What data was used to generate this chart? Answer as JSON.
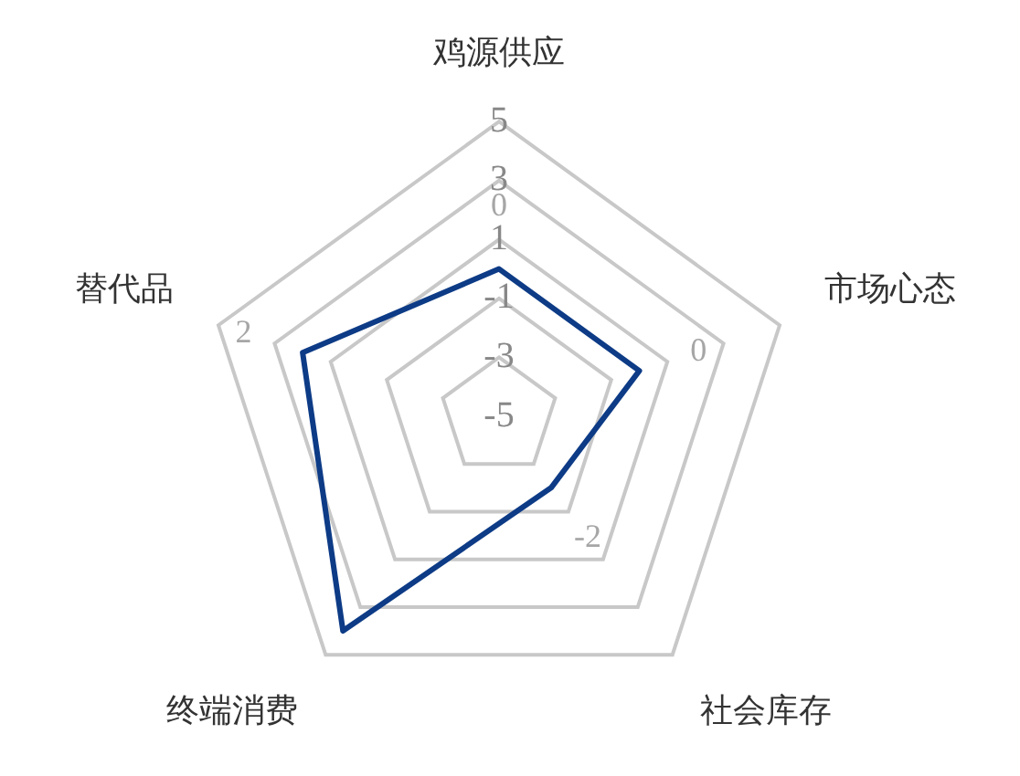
{
  "chart_data": {
    "type": "radar",
    "categories": [
      "鸡源供应",
      "市场心态",
      "社会库存",
      "终端消费",
      "替代品"
    ],
    "series": [
      {
        "color": "#0d3b86",
        "values": [
          0,
          0,
          -2,
          4,
          2
        ],
        "value_labels": [
          "0",
          "0",
          "-2",
          null,
          "2"
        ]
      }
    ],
    "ylim": [
      -5,
      5
    ],
    "yticks": [
      -5,
      -3,
      -1,
      1,
      3,
      5
    ],
    "grid": true,
    "legend": false,
    "marker": "none",
    "line_style": "solid"
  }
}
